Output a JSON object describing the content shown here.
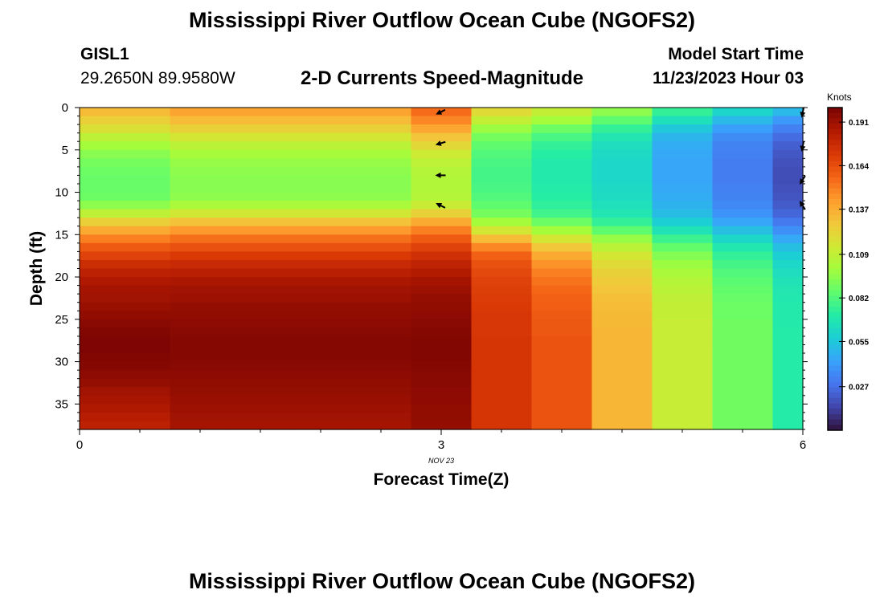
{
  "header": {
    "title": "Mississippi River Outflow Ocean Cube (NGOFS2)",
    "station_id": "GISL1",
    "station_coords": "29.2650N  89.9580W",
    "subtitle": "2-D Currents Speed-Magnitude",
    "model_start_label": "Model Start Time",
    "model_start_value": "11/23/2023 Hour 03"
  },
  "footer": {
    "title": "Mississippi River Outflow Ocean Cube (NGOFS2)"
  },
  "chart_data": {
    "type": "heatmap",
    "xlabel": "Forecast Time(Z)",
    "ylabel": "Depth (ft)",
    "x_date_label": "NOV 23",
    "xlim": [
      0,
      6
    ],
    "ylim": [
      38,
      0
    ],
    "x_ticks": [
      0,
      3,
      6
    ],
    "y_ticks": [
      0,
      5,
      10,
      15,
      20,
      25,
      30,
      35
    ],
    "colorbar": {
      "label": "Knots",
      "min": 0.0,
      "max": 0.2,
      "ticks": [
        0.191,
        0.164,
        0.137,
        0.109,
        0.082,
        0.055,
        0.027
      ],
      "colormap": [
        "#30123b",
        "#4145ab",
        "#4675ed",
        "#39a2fc",
        "#1bcfd4",
        "#24eca6",
        "#61fc6c",
        "#a4fc3b",
        "#d1e834",
        "#f3c63a",
        "#fe9b2d",
        "#f36315",
        "#d93806",
        "#b11901",
        "#7a0403"
      ]
    },
    "columns_x": [
      0,
      0.5,
      1.0,
      1.5,
      2.0,
      2.5,
      3.0,
      3.5,
      4.0,
      4.5,
      5.0,
      5.5,
      6.0
    ],
    "depth_levels_ft": [
      0,
      1,
      2,
      3,
      4,
      5,
      6,
      7,
      8,
      9,
      10,
      11,
      12,
      13,
      14,
      15,
      16,
      17,
      18,
      19,
      20,
      21,
      22,
      23,
      24,
      25,
      26,
      27,
      28,
      29,
      30,
      31,
      32,
      33,
      34,
      35,
      36,
      37
    ],
    "profiles": {
      "A": [
        0.132,
        0.125,
        0.118,
        0.108,
        0.1,
        0.094,
        0.09,
        0.088,
        0.087,
        0.087,
        0.088,
        0.095,
        0.108,
        0.125,
        0.138,
        0.15,
        0.16,
        0.168,
        0.176,
        0.182,
        0.186,
        0.189,
        0.19,
        0.192,
        0.194,
        0.196,
        0.198,
        0.199,
        0.199,
        0.198,
        0.197,
        0.195,
        0.193,
        0.19,
        0.188,
        0.186,
        0.184,
        0.182
      ],
      "B": [
        0.14,
        0.132,
        0.124,
        0.115,
        0.107,
        0.101,
        0.097,
        0.095,
        0.094,
        0.094,
        0.095,
        0.102,
        0.114,
        0.13,
        0.143,
        0.154,
        0.163,
        0.171,
        0.178,
        0.183,
        0.187,
        0.19,
        0.191,
        0.193,
        0.194,
        0.195,
        0.196,
        0.197,
        0.197,
        0.197,
        0.196,
        0.195,
        0.194,
        0.193,
        0.192,
        0.191,
        0.19,
        0.189
      ],
      "C": [
        0.155,
        0.148,
        0.139,
        0.129,
        0.121,
        0.113,
        0.108,
        0.105,
        0.104,
        0.104,
        0.105,
        0.112,
        0.124,
        0.138,
        0.15,
        0.16,
        0.168,
        0.175,
        0.181,
        0.185,
        0.189,
        0.191,
        0.193,
        0.194,
        0.195,
        0.196,
        0.197,
        0.198,
        0.198,
        0.198,
        0.197,
        0.196,
        0.196,
        0.195,
        0.195,
        0.194,
        0.194,
        0.193
      ],
      "D": [
        0.12,
        0.11,
        0.098,
        0.09,
        0.085,
        0.082,
        0.08,
        0.079,
        0.079,
        0.08,
        0.082,
        0.085,
        0.09,
        0.1,
        0.115,
        0.132,
        0.148,
        0.158,
        0.163,
        0.166,
        0.168,
        0.169,
        0.17,
        0.171,
        0.172,
        0.172,
        0.172,
        0.173,
        0.173,
        0.173,
        0.173,
        0.173,
        0.173,
        0.173,
        0.173,
        0.173,
        0.173,
        0.173
      ],
      "E": [
        0.11,
        0.1,
        0.088,
        0.08,
        0.075,
        0.072,
        0.07,
        0.07,
        0.07,
        0.071,
        0.072,
        0.074,
        0.078,
        0.088,
        0.1,
        0.115,
        0.128,
        0.138,
        0.145,
        0.15,
        0.153,
        0.156,
        0.158,
        0.159,
        0.16,
        0.161,
        0.161,
        0.162,
        0.162,
        0.162,
        0.162,
        0.162,
        0.162,
        0.162,
        0.162,
        0.162,
        0.162,
        0.162
      ],
      "F": [
        0.095,
        0.085,
        0.075,
        0.068,
        0.064,
        0.062,
        0.061,
        0.061,
        0.061,
        0.062,
        0.063,
        0.065,
        0.068,
        0.075,
        0.085,
        0.097,
        0.107,
        0.115,
        0.12,
        0.124,
        0.127,
        0.129,
        0.131,
        0.132,
        0.133,
        0.133,
        0.134,
        0.134,
        0.134,
        0.134,
        0.134,
        0.134,
        0.134,
        0.134,
        0.134,
        0.134,
        0.134,
        0.134
      ],
      "G": [
        0.075,
        0.065,
        0.055,
        0.049,
        0.046,
        0.045,
        0.044,
        0.044,
        0.044,
        0.045,
        0.046,
        0.048,
        0.051,
        0.057,
        0.066,
        0.077,
        0.086,
        0.093,
        0.098,
        0.102,
        0.105,
        0.107,
        0.109,
        0.11,
        0.11,
        0.111,
        0.111,
        0.111,
        0.111,
        0.111,
        0.111,
        0.111,
        0.111,
        0.111,
        0.111,
        0.111,
        0.111,
        0.111
      ],
      "H": [
        0.06,
        0.05,
        0.042,
        0.036,
        0.033,
        0.032,
        0.031,
        0.031,
        0.031,
        0.032,
        0.033,
        0.035,
        0.038,
        0.044,
        0.052,
        0.061,
        0.069,
        0.075,
        0.079,
        0.082,
        0.084,
        0.086,
        0.087,
        0.088,
        0.088,
        0.089,
        0.089,
        0.089,
        0.089,
        0.089,
        0.089,
        0.089,
        0.089,
        0.089,
        0.089,
        0.089,
        0.089,
        0.089
      ],
      "I": [
        0.05,
        0.04,
        0.032,
        0.026,
        0.022,
        0.02,
        0.018,
        0.017,
        0.017,
        0.018,
        0.019,
        0.021,
        0.024,
        0.03,
        0.037,
        0.045,
        0.052,
        0.057,
        0.061,
        0.064,
        0.066,
        0.068,
        0.069,
        0.07,
        0.07,
        0.07,
        0.071,
        0.071,
        0.071,
        0.071,
        0.071,
        0.071,
        0.071,
        0.071,
        0.071,
        0.071,
        0.071,
        0.071
      ]
    },
    "cells": [
      {
        "x0": 0.0,
        "x1": 0.25,
        "profile": "A"
      },
      {
        "x0": 0.25,
        "x1": 0.75,
        "profile": "A"
      },
      {
        "x0": 0.75,
        "x1": 1.25,
        "profile": "B"
      },
      {
        "x0": 1.25,
        "x1": 1.75,
        "profile": "B"
      },
      {
        "x0": 1.75,
        "x1": 2.25,
        "profile": "B"
      },
      {
        "x0": 2.25,
        "x1": 2.75,
        "profile": "B"
      },
      {
        "x0": 2.75,
        "x1": 3.25,
        "profile": "C"
      },
      {
        "x0": 3.25,
        "x1": 3.75,
        "profile": "D"
      },
      {
        "x0": 3.75,
        "x1": 4.25,
        "profile": "E"
      },
      {
        "x0": 4.25,
        "x1": 4.75,
        "profile": "F"
      },
      {
        "x0": 4.75,
        "x1": 5.25,
        "profile": "G"
      },
      {
        "x0": 5.25,
        "x1": 5.75,
        "profile": "H"
      },
      {
        "x0": 5.75,
        "x1": 6.0,
        "profile": "I"
      }
    ],
    "vectors": [
      {
        "x": 3,
        "depth": 0.5,
        "dx": -1,
        "dy": 0.5
      },
      {
        "x": 3,
        "depth": 4.2,
        "dx": -1,
        "dy": 0.3
      },
      {
        "x": 3,
        "depth": 8,
        "dx": -1,
        "dy": 0
      },
      {
        "x": 3,
        "depth": 11.6,
        "dx": -1,
        "dy": -0.5
      },
      {
        "x": 6,
        "depth": 0.5,
        "dx": -0.2,
        "dy": 1
      },
      {
        "x": 6,
        "depth": 4.5,
        "dx": -0.2,
        "dy": 1
      },
      {
        "x": 6,
        "depth": 8.5,
        "dx": -0.5,
        "dy": 0.8
      },
      {
        "x": 6,
        "depth": 11.6,
        "dx": -0.5,
        "dy": -0.8
      }
    ]
  }
}
